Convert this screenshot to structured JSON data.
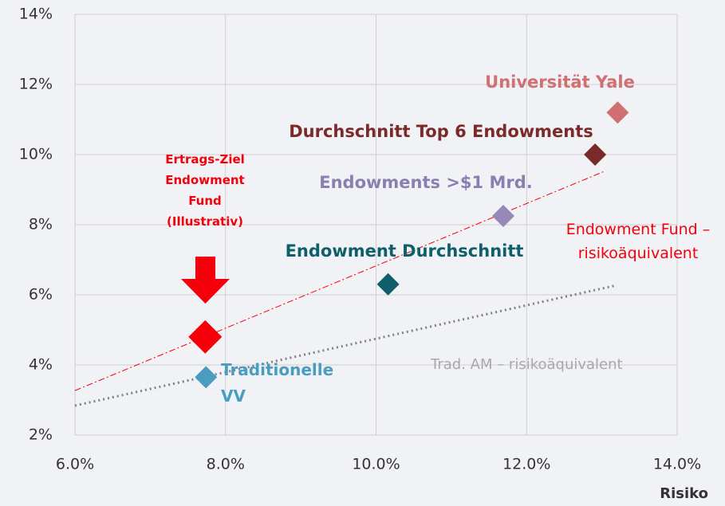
{
  "chart_data": {
    "type": "scatter",
    "xlabel": "Risiko",
    "xlim": [
      6,
      14
    ],
    "xticks": [
      {
        "value": 6,
        "label": "6.0%"
      },
      {
        "value": 8,
        "label": "8.0%"
      },
      {
        "value": 10,
        "label": "10.0%"
      },
      {
        "value": 12,
        "label": "12.0%"
      },
      {
        "value": 14,
        "label": "14.0%"
      }
    ],
    "ylim": [
      2,
      14
    ],
    "yticks": [
      {
        "value": 2,
        "label": "2%"
      },
      {
        "value": 4,
        "label": "4%"
      },
      {
        "value": 6,
        "label": "6%"
      },
      {
        "value": 8,
        "label": "8%"
      },
      {
        "value": 10,
        "label": "10%"
      },
      {
        "value": 12,
        "label": "12%"
      },
      {
        "value": 14,
        "label": "14%"
      }
    ],
    "grid": true,
    "series": [
      {
        "name": "Ertrags-Ziel\nEndowment\nFund\n(Illustrativ)",
        "color": "#f5000a",
        "x": [
          7.73
        ],
        "values": [
          4.8
        ]
      },
      {
        "name": "Traditionelle\nVV",
        "color": "#4a9cc0",
        "x": [
          7.74
        ],
        "values": [
          3.65
        ]
      },
      {
        "name": "Endowment Durchschnitt",
        "color": "#0e5f6a",
        "x": [
          10.16
        ],
        "values": [
          6.3
        ]
      },
      {
        "name": "Endowments >$1 Mrd.",
        "color": "#9688b8",
        "x": [
          11.69
        ],
        "values": [
          8.25
        ]
      },
      {
        "name": "Durchschnitt Top 6 Endowments",
        "color": "#7b2a2a",
        "x": [
          12.91
        ],
        "values": [
          10.0
        ]
      },
      {
        "name": "Universität Yale",
        "color": "#d07070",
        "x": [
          13.21
        ],
        "values": [
          11.2
        ]
      }
    ],
    "lines": [
      {
        "name": "Endowment Fund –\nrisikoäquivalent",
        "color": "#f5000a",
        "style": "dashdot",
        "x": [
          6,
          13.03
        ],
        "values": [
          3.27,
          9.52
        ]
      },
      {
        "name": "Trad. AM – risikoäquivalent",
        "color": "#808080",
        "style": "dotted",
        "x": [
          6,
          13.19
        ],
        "values": [
          2.84,
          6.27
        ]
      }
    ]
  }
}
